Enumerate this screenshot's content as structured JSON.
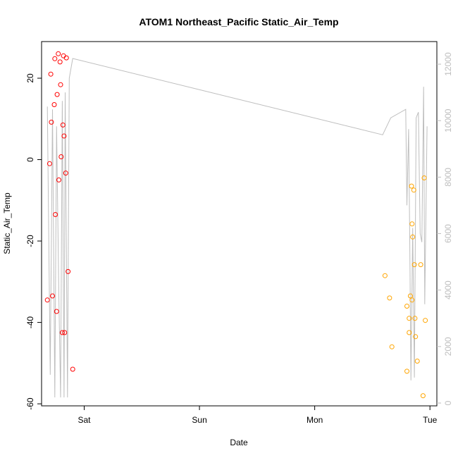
{
  "chart_data": {
    "type": "scatter",
    "title": "ATOM1 Northeast_Pacific Static_Air_Temp",
    "xlabel": "Date",
    "ylabel": "Static_Air_Temp",
    "x_ticks": [
      {
        "label": "Sat",
        "day": 1.0
      },
      {
        "label": "Sun",
        "day": 2.0
      },
      {
        "label": "Mon",
        "day": 3.0
      },
      {
        "label": "Tue",
        "day": 4.0
      }
    ],
    "xlim_days": [
      0.63,
      4.06
    ],
    "ylim": [
      -60.5,
      29
    ],
    "y_ticks": [
      -60,
      -40,
      -20,
      0,
      20
    ],
    "y2lim": [
      -100,
      12800
    ],
    "y2_ticks": [
      0,
      2000,
      4000,
      6000,
      8000,
      10000,
      12000
    ],
    "grid": false,
    "colors": {
      "series1": "#ff0000",
      "series2": "#ffa500",
      "secondary_line": "#bebebe",
      "axis": "#000000",
      "secondary_axis": "#bebebe"
    },
    "series": [
      {
        "color": "#ff0000",
        "marker": "open-circle",
        "points": [
          [
            0.68,
            -34.5
          ],
          [
            0.7,
            -1
          ],
          [
            0.71,
            21
          ],
          [
            0.715,
            9.2
          ],
          [
            0.725,
            -33.5
          ],
          [
            0.74,
            13.5
          ],
          [
            0.745,
            24.8
          ],
          [
            0.75,
            -13.5
          ],
          [
            0.76,
            -37.3
          ],
          [
            0.765,
            16
          ],
          [
            0.775,
            26
          ],
          [
            0.78,
            -5
          ],
          [
            0.79,
            24
          ],
          [
            0.795,
            18.4
          ],
          [
            0.8,
            0.7
          ],
          [
            0.81,
            -42.5
          ],
          [
            0.815,
            8.5
          ],
          [
            0.82,
            25.5
          ],
          [
            0.825,
            5.8
          ],
          [
            0.83,
            -42.5
          ],
          [
            0.84,
            -3.3
          ],
          [
            0.845,
            25
          ],
          [
            0.86,
            -27.5
          ],
          [
            0.9,
            -51.5
          ]
        ]
      },
      {
        "color": "#ffa500",
        "marker": "open-circle",
        "points": [
          [
            3.61,
            -28.5
          ],
          [
            3.65,
            -34
          ],
          [
            3.67,
            -46
          ],
          [
            3.8,
            -52
          ],
          [
            3.8,
            -36
          ],
          [
            3.82,
            -42.5
          ],
          [
            3.82,
            -39
          ],
          [
            3.83,
            -33.5
          ],
          [
            3.84,
            -6.5
          ],
          [
            3.845,
            -34.5
          ],
          [
            3.845,
            -15.8
          ],
          [
            3.85,
            -19
          ],
          [
            3.86,
            -7.5
          ],
          [
            3.865,
            -25.8
          ],
          [
            3.87,
            -39
          ],
          [
            3.875,
            -43.5
          ],
          [
            3.89,
            -49.5
          ],
          [
            3.92,
            -25.8
          ],
          [
            3.94,
            -58
          ],
          [
            3.95,
            -4.5
          ],
          [
            3.96,
            -39.5
          ]
        ]
      }
    ],
    "secondary_series": {
      "color": "#bebebe",
      "type": "line",
      "axis": "right",
      "points": [
        [
          0.68,
          10500
        ],
        [
          0.705,
          1000
        ],
        [
          0.725,
          10400
        ],
        [
          0.745,
          200
        ],
        [
          0.76,
          9800
        ],
        [
          0.78,
          3800
        ],
        [
          0.795,
          200
        ],
        [
          0.81,
          10700
        ],
        [
          0.825,
          200
        ],
        [
          0.835,
          11000
        ],
        [
          0.855,
          200
        ],
        [
          0.87,
          11500
        ],
        [
          0.9,
          12200
        ],
        [
          3.59,
          9500
        ],
        [
          3.66,
          10100
        ],
        [
          3.79,
          10400
        ],
        [
          3.8,
          7000
        ],
        [
          3.815,
          9700
        ],
        [
          3.825,
          5600
        ],
        [
          3.835,
          800
        ],
        [
          3.85,
          6200
        ],
        [
          3.865,
          900
        ],
        [
          3.88,
          10100
        ],
        [
          3.9,
          10300
        ],
        [
          3.915,
          6000
        ],
        [
          3.93,
          5700
        ],
        [
          3.945,
          11200
        ],
        [
          3.955,
          3500
        ],
        [
          3.975,
          9800
        ]
      ]
    }
  }
}
